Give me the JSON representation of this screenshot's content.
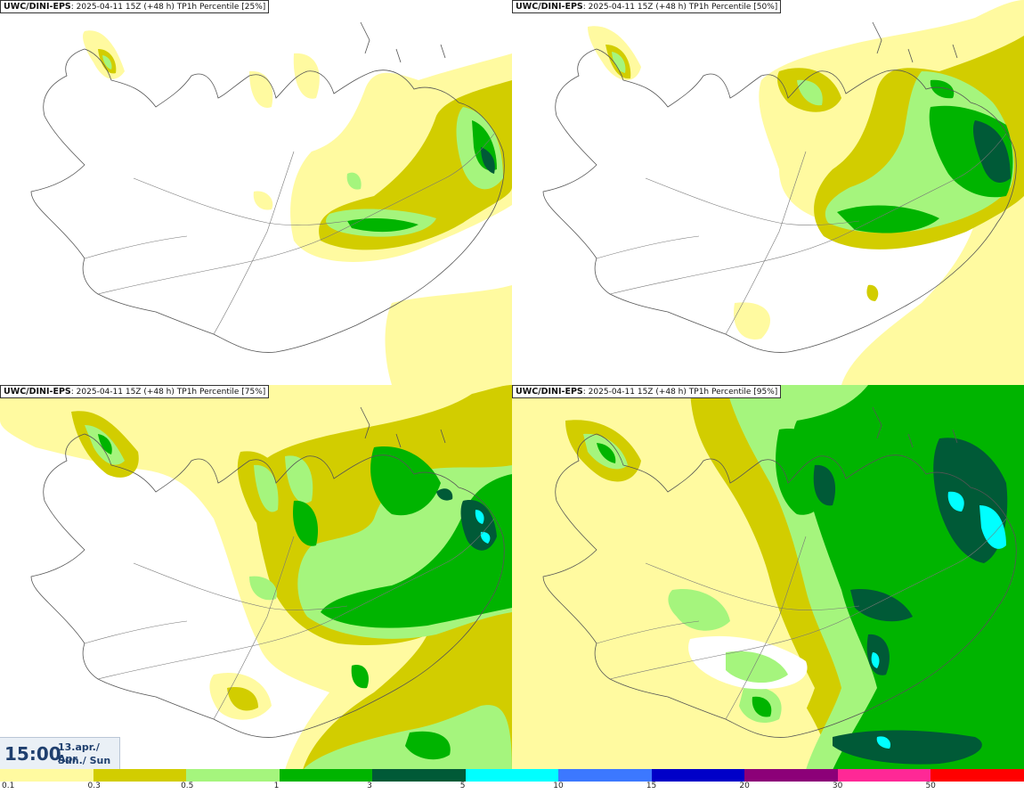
{
  "panels": [
    {
      "model": "UWC/DINI-EPS",
      "run": ": 2025-04-11 15Z (+48 h)",
      "product": " TP1h Percentile [25%]"
    },
    {
      "model": "UWC/DINI-EPS",
      "run": ": 2025-04-11 15Z (+48 h)",
      "product": " TP1h Percentile [50%]"
    },
    {
      "model": "UWC/DINI-EPS",
      "run": ": 2025-04-11 15Z (+48 h)",
      "product": " TP1h Percentile [75%]"
    },
    {
      "model": "UWC/DINI-EPS",
      "run": ": 2025-04-11 15Z (+48 h)",
      "product": " TP1h Percentile [95%]"
    }
  ],
  "valid_time": {
    "time": "15:00",
    "date": "13.apr./ Apr",
    "day": "Sun./ Sun"
  },
  "legend": {
    "colors": [
      "#fffaa0",
      "#d2cd00",
      "#a5f57d",
      "#00b400",
      "#005a37",
      "#00ffff",
      "#3c78ff",
      "#0000c8",
      "#8c0078",
      "#ff2896",
      "#ff0000"
    ],
    "labels": [
      "0.1",
      "0.3",
      "0.5",
      "1",
      "3",
      "5",
      "10",
      "15",
      "20",
      "30",
      "50"
    ]
  },
  "palette": {
    "coast": "#555555",
    "road": "#777777"
  }
}
